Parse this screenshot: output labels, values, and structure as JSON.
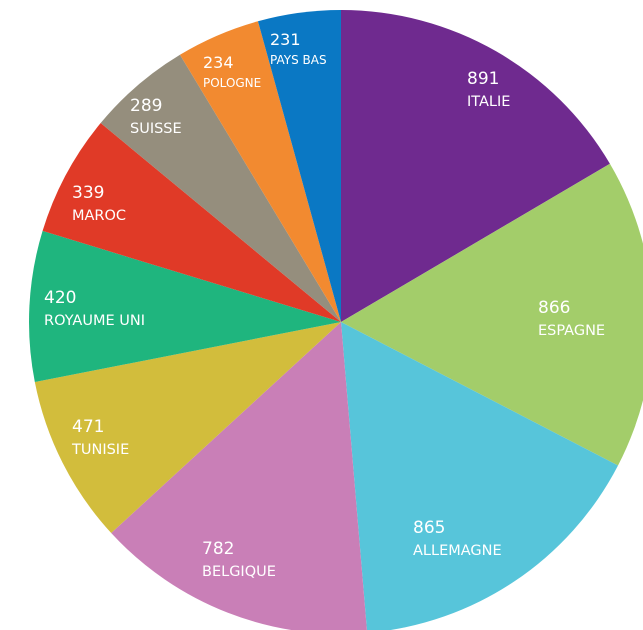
{
  "chart_data": {
    "type": "pie",
    "title": "",
    "slices": [
      {
        "label": "ITALIE",
        "value": 891,
        "color": "#6f2a8f"
      },
      {
        "label": "ESPAGNE",
        "value": 866,
        "color": "#a3cd6a"
      },
      {
        "label": "ALLEMAGNE",
        "value": 865,
        "color": "#57c5da"
      },
      {
        "label": "BELGIQUE",
        "value": 782,
        "color": "#c97fb7"
      },
      {
        "label": "TUNISIE",
        "value": 471,
        "color": "#d2bd3c"
      },
      {
        "label": "ROYAUME UNI",
        "value": 420,
        "color": "#1fb57e"
      },
      {
        "label": "MAROC",
        "value": 339,
        "color": "#e03a27"
      },
      {
        "label": "SUISSE",
        "value": 289,
        "color": "#958e7d"
      },
      {
        "label": "POLOGNE",
        "value": 234,
        "color": "#f28a30"
      },
      {
        "label": "PAYS BAS",
        "value": 231,
        "color": "#0a78c4"
      }
    ]
  }
}
